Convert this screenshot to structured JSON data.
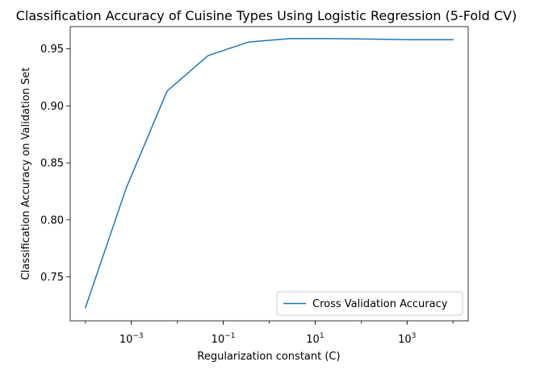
{
  "chart_data": {
    "type": "line",
    "title": "Classification Accuracy of Cuisine Types Using Logistic Regression (5-Fold CV)",
    "xlabel": "Regularization constant (C)",
    "ylabel": "Classification Accuracy on Validation Set",
    "xscale": "log",
    "xlim": [
      4.67e-05,
      21400
    ],
    "ylim": [
      0.7115,
      0.9695
    ],
    "x_ticks": [
      {
        "value": 0.001,
        "base": "10",
        "exp": "−3"
      },
      {
        "value": 0.1,
        "base": "10",
        "exp": "−1"
      },
      {
        "value": 10,
        "base": "10",
        "exp": "1"
      },
      {
        "value": 1000,
        "base": "10",
        "exp": "3"
      }
    ],
    "y_ticks": [
      {
        "value": 0.75,
        "label": "0.75"
      },
      {
        "value": 0.8,
        "label": "0.80"
      },
      {
        "value": 0.85,
        "label": "0.85"
      },
      {
        "value": 0.9,
        "label": "0.90"
      },
      {
        "value": 0.95,
        "label": "0.95"
      }
    ],
    "grid": false,
    "legend_position": "lower-right",
    "series": [
      {
        "name": "Cross Validation Accuracy",
        "color": "#1f77b4",
        "x": [
          0.0001,
          0.000774,
          0.00599,
          0.0464,
          0.359,
          2.78,
          21.5,
          167,
          1292,
          10000
        ],
        "y": [
          0.723,
          0.828,
          0.913,
          0.944,
          0.956,
          0.959,
          0.959,
          0.9585,
          0.958,
          0.958
        ]
      }
    ]
  }
}
